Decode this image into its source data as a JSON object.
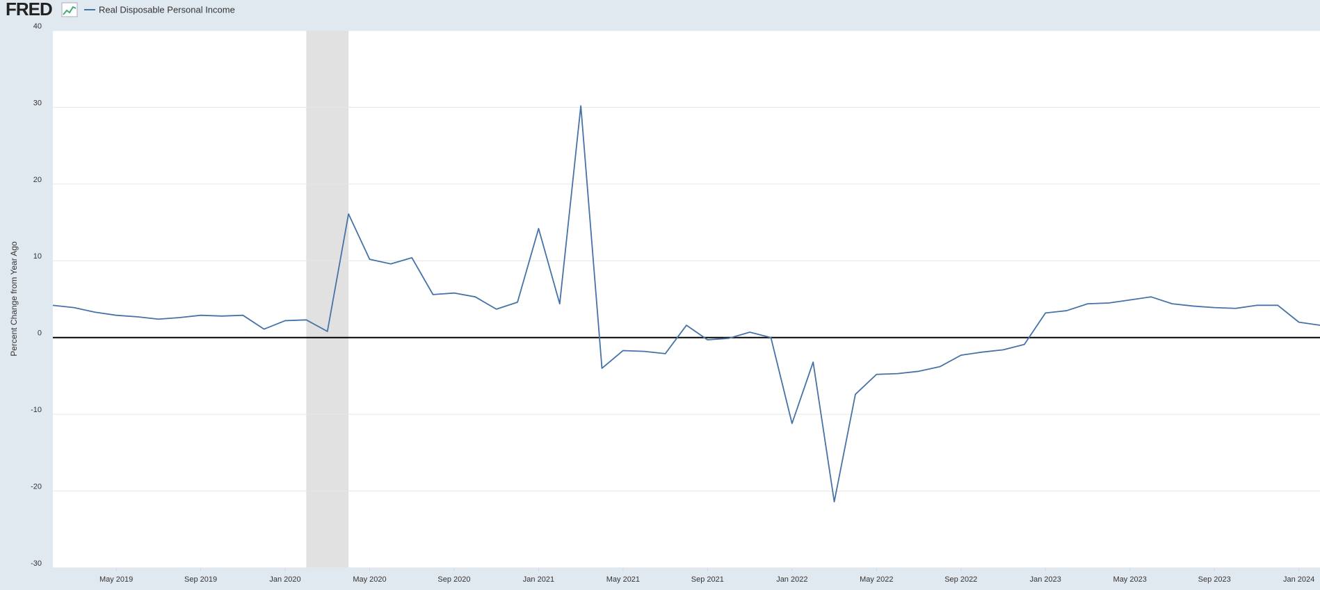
{
  "logo": "FRED",
  "chart_data": {
    "type": "line",
    "y_label": "Percent Change from Year Ago",
    "x": [
      "2019-02",
      "2019-03",
      "2019-04",
      "2019-05",
      "2019-06",
      "2019-07",
      "2019-08",
      "2019-09",
      "2019-10",
      "2019-11",
      "2019-12",
      "2020-01",
      "2020-02",
      "2020-03",
      "2020-04",
      "2020-05",
      "2020-06",
      "2020-07",
      "2020-08",
      "2020-09",
      "2020-10",
      "2020-11",
      "2020-12",
      "2021-01",
      "2021-02",
      "2021-03",
      "2021-04",
      "2021-05",
      "2021-06",
      "2021-07",
      "2021-08",
      "2021-09",
      "2021-10",
      "2021-11",
      "2021-12",
      "2022-01",
      "2022-02",
      "2022-03",
      "2022-04",
      "2022-05",
      "2022-06",
      "2022-07",
      "2022-08",
      "2022-09",
      "2022-10",
      "2022-11",
      "2022-12",
      "2023-01",
      "2023-02",
      "2023-03",
      "2023-04",
      "2023-05",
      "2023-06",
      "2023-07",
      "2023-08",
      "2023-09",
      "2023-10",
      "2023-11",
      "2023-12",
      "2024-01",
      "2024-02"
    ],
    "series": [
      {
        "name": "Real Disposable Personal Income",
        "color": "#4572a7",
        "values": [
          4.2,
          3.9,
          3.3,
          2.9,
          2.7,
          2.4,
          2.6,
          2.9,
          2.8,
          2.9,
          1.1,
          2.2,
          2.3,
          0.8,
          16.1,
          10.2,
          9.6,
          10.4,
          5.6,
          5.8,
          5.3,
          3.7,
          4.6,
          14.2,
          4.4,
          30.2,
          -4.0,
          -1.7,
          -1.8,
          -2.1,
          1.6,
          -0.3,
          -0.1,
          0.7,
          0.0,
          -11.2,
          -3.2,
          -21.4,
          -7.4,
          -4.8,
          -4.7,
          -4.4,
          -3.8,
          -2.3,
          -1.9,
          -1.6,
          -0.9,
          3.2,
          3.5,
          4.4,
          4.5,
          4.9,
          5.3,
          4.4,
          4.1,
          3.9,
          3.8,
          4.2,
          4.2,
          2.0,
          1.6
        ]
      }
    ],
    "xlim": [
      "2019-02",
      "2024-02"
    ],
    "xticks": [
      {
        "value": "2019-05",
        "label": "May 2019"
      },
      {
        "value": "2019-09",
        "label": "Sep 2019"
      },
      {
        "value": "2020-01",
        "label": "Jan 2020"
      },
      {
        "value": "2020-05",
        "label": "May 2020"
      },
      {
        "value": "2020-09",
        "label": "Sep 2020"
      },
      {
        "value": "2021-01",
        "label": "Jan 2021"
      },
      {
        "value": "2021-05",
        "label": "May 2021"
      },
      {
        "value": "2021-09",
        "label": "Sep 2021"
      },
      {
        "value": "2022-01",
        "label": "Jan 2022"
      },
      {
        "value": "2022-05",
        "label": "May 2022"
      },
      {
        "value": "2022-09",
        "label": "Sep 2022"
      },
      {
        "value": "2023-01",
        "label": "Jan 2023"
      },
      {
        "value": "2023-05",
        "label": "May 2023"
      },
      {
        "value": "2023-09",
        "label": "Sep 2023"
      },
      {
        "value": "2024-01",
        "label": "Jan 2024"
      }
    ],
    "ylim": [
      -30,
      40
    ],
    "yticks": [
      -30,
      -20,
      -10,
      0,
      10,
      20,
      30,
      40
    ],
    "grid": true,
    "recession": [
      "2020-02",
      "2020-04"
    ]
  }
}
